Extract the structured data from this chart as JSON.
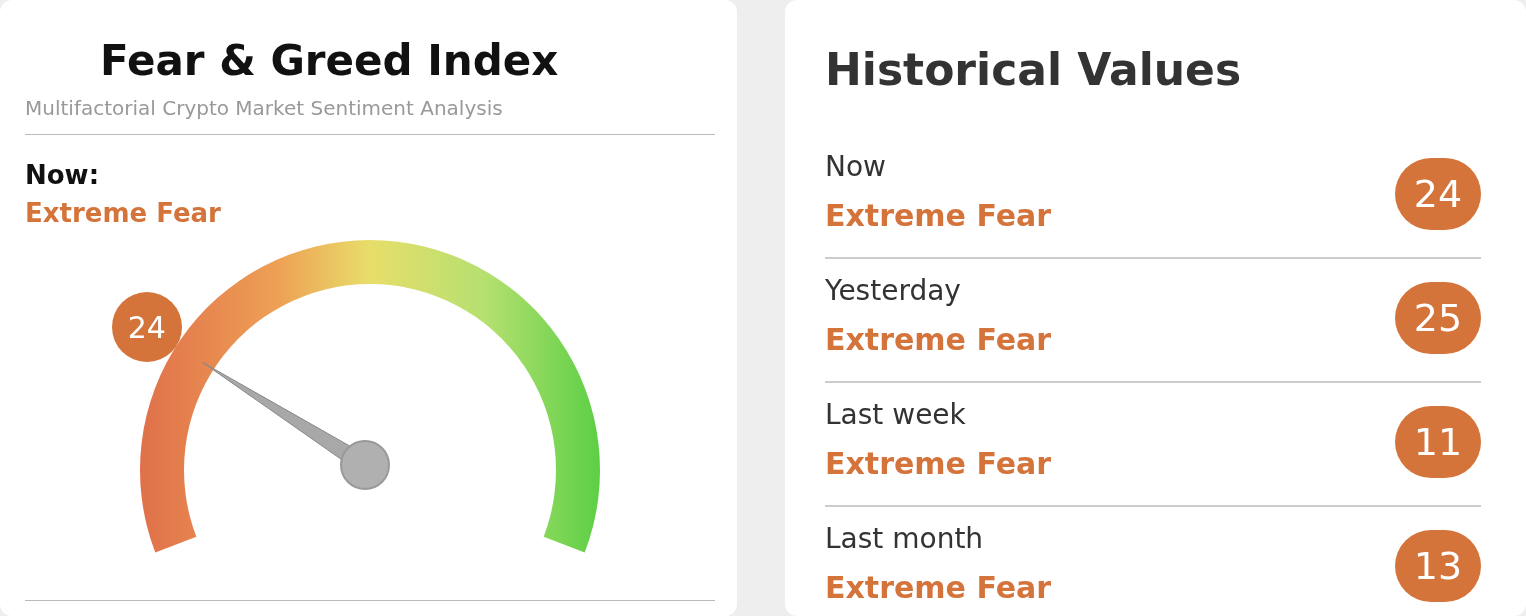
{
  "chart_data": [
    {
      "type": "other",
      "title": "Fear & Greed Index",
      "subtitle": "Multifactorial Crypto Market Sentiment Analysis",
      "annotations": [
        "Now:",
        "Extreme Fear"
      ],
      "values": [
        24
      ],
      "data_labels": true,
      "color": "#d4733a"
    },
    {
      "type": "other",
      "title": "Historical Values",
      "categories": [
        "Now",
        "Yesterday",
        "Last week",
        "Last month"
      ],
      "values": [
        24,
        25,
        11,
        13
      ],
      "annotations": [
        "Extreme Fear",
        "Extreme Fear",
        "Extreme Fear",
        "Extreme Fear"
      ],
      "data_labels": true,
      "color": "#d4733a"
    }
  ]
}
